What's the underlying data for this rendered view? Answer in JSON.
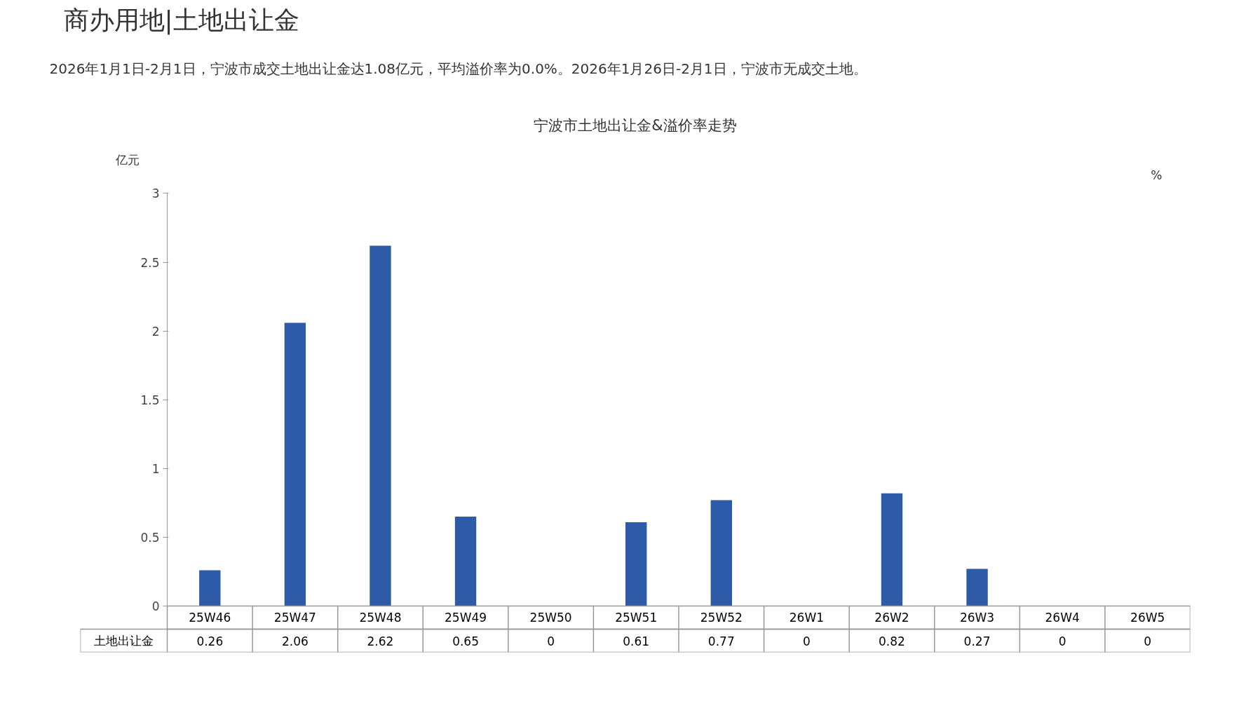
{
  "chart_data": {
    "type": "bar",
    "title": "商办用地|土地出让金",
    "subtitle": "2026年1月1日-2月1日，宁波市成交土地出让金达1.08亿元，平均溢价率为0.0%。2026年1月26日-2月1日，宁波市无成交土地。",
    "annotations": [
      "宁波市土地出让金&溢价率走势"
    ],
    "ylabel": "亿元",
    "y2label": "%",
    "categories": [
      "25W46",
      "25W47",
      "25W48",
      "25W49",
      "25W50",
      "25W51",
      "25W52",
      "26W1",
      "26W2",
      "26W3",
      "26W4",
      "26W5"
    ],
    "series": [
      {
        "name": "土地出让金",
        "color": "#2e5ba7",
        "values": [
          0.26,
          2.06,
          2.62,
          0.65,
          0,
          0.61,
          0.77,
          0,
          0.82,
          0.27,
          0,
          0
        ]
      }
    ],
    "ylim": [
      0,
      3
    ],
    "yticks": [
      0,
      0.5,
      1,
      1.5,
      2,
      2.5,
      3
    ],
    "data_labels": true,
    "grid": false,
    "legend": false
  }
}
